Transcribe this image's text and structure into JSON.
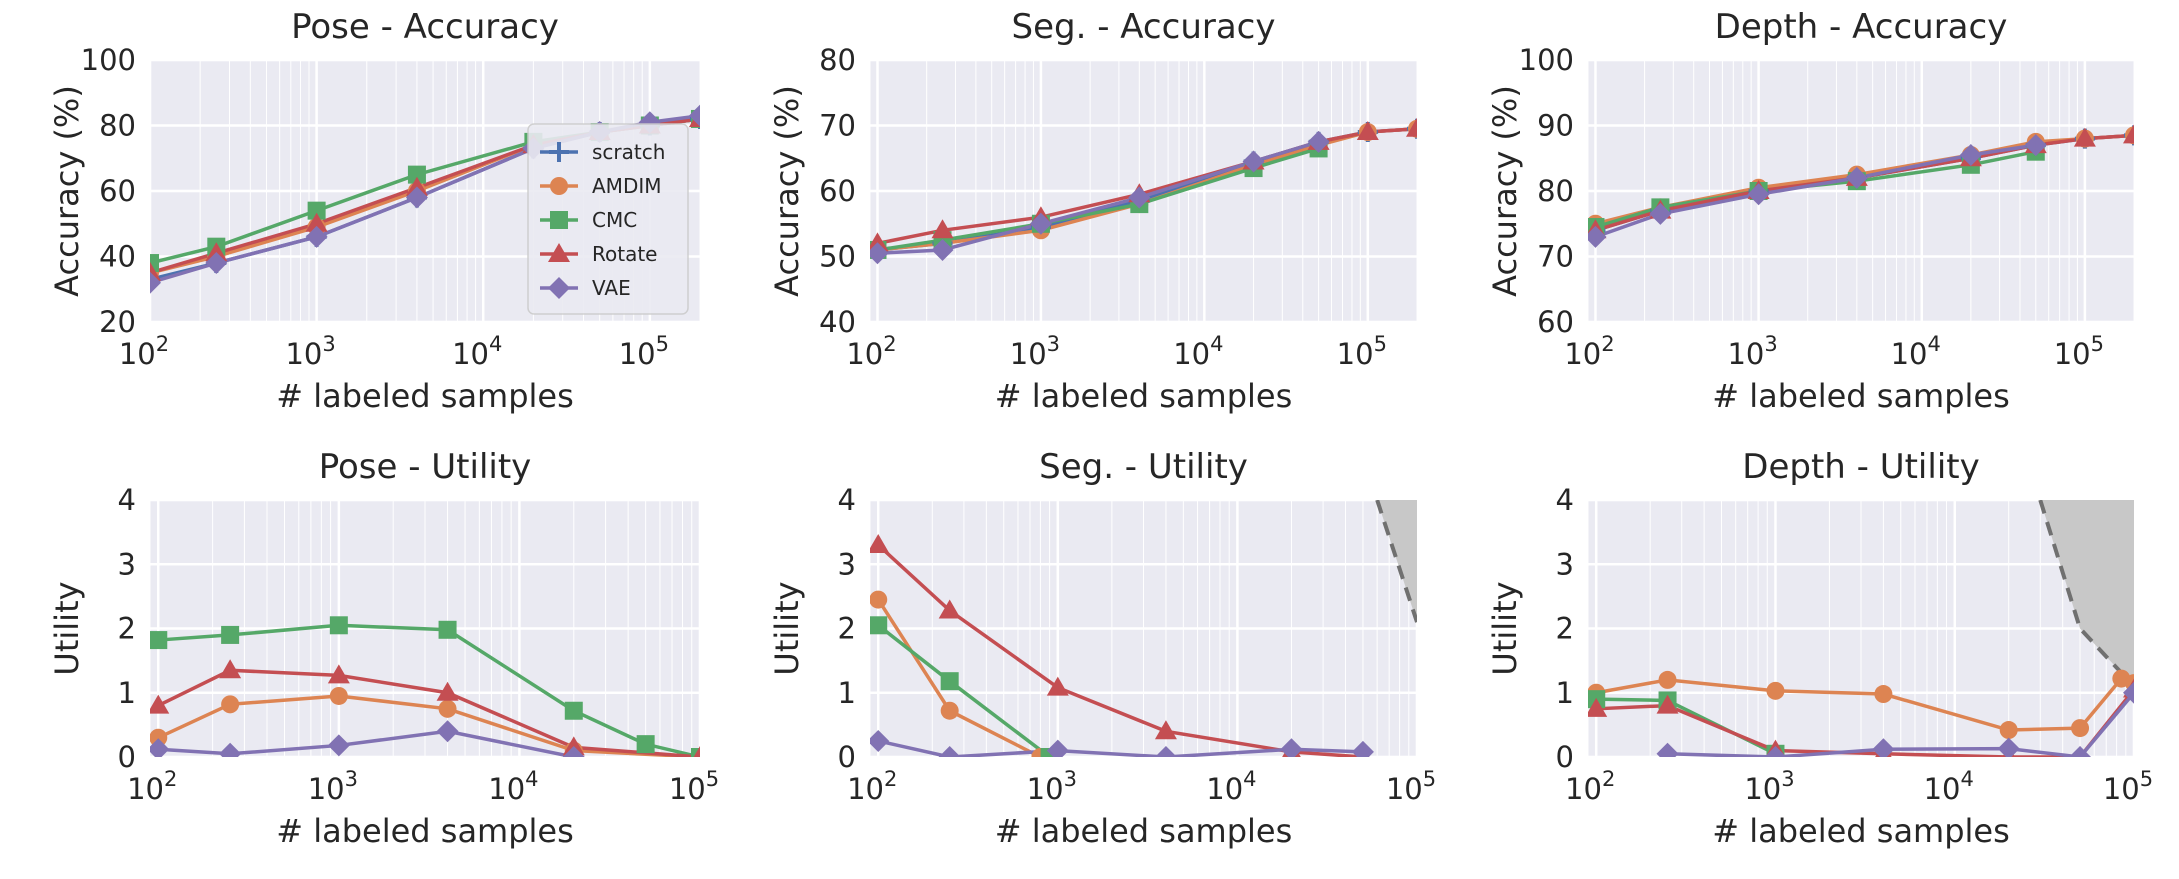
{
  "colors": {
    "background": "#EAEAF2",
    "grid": "#FFFFFF",
    "scratch": "#4C72B0",
    "AMDIM": "#DD8452",
    "CMC": "#55A868",
    "Rotate": "#C44E52",
    "VAE": "#8172B3",
    "shade": "#C8C8C8",
    "dash": "#707070"
  },
  "legend": {
    "placement": "inside top-left panel, right side",
    "labels": [
      "scratch",
      "AMDIM",
      "CMC",
      "Rotate",
      "VAE"
    ]
  },
  "chart_data": [
    {
      "id": "pose-acc",
      "type": "line",
      "title": "Pose - Accuracy",
      "xlabel": "# labeled samples",
      "ylabel": "Accuracy (%)",
      "xscale": "log",
      "xlim": [
        100,
        200000
      ],
      "ylim": [
        20,
        100
      ],
      "yticks": [
        20,
        40,
        60,
        80,
        100
      ],
      "xticks": [
        {
          "exp": 2
        },
        {
          "exp": 3
        },
        {
          "exp": 4
        },
        {
          "exp": 5
        }
      ],
      "grid": true,
      "legend": true,
      "series": [
        {
          "name": "scratch",
          "marker": "plus",
          "x": [
            100,
            250,
            1000,
            4000,
            20000,
            50000,
            100000,
            200000
          ],
          "y": [
            33,
            38,
            46,
            58,
            73,
            78,
            80,
            82
          ]
        },
        {
          "name": "AMDIM",
          "marker": "circle",
          "x": [
            100,
            250,
            1000,
            4000,
            20000,
            50000,
            100000,
            200000
          ],
          "y": [
            35,
            40,
            49,
            60,
            74,
            78,
            80,
            82
          ]
        },
        {
          "name": "CMC",
          "marker": "square",
          "x": [
            100,
            250,
            1000,
            4000,
            20000,
            50000,
            100000,
            200000
          ],
          "y": [
            38,
            43,
            54,
            65,
            75,
            78,
            80,
            82
          ]
        },
        {
          "name": "Rotate",
          "marker": "triangle",
          "x": [
            100,
            250,
            1000,
            4000,
            20000,
            50000,
            100000,
            200000
          ],
          "y": [
            35,
            41,
            50,
            61,
            74,
            78,
            80,
            82
          ]
        },
        {
          "name": "VAE",
          "marker": "diamond",
          "x": [
            100,
            250,
            1000,
            4000,
            20000,
            50000,
            100000,
            200000
          ],
          "y": [
            32,
            38,
            46,
            58,
            73,
            78,
            81,
            83
          ]
        }
      ]
    },
    {
      "id": "seg-acc",
      "type": "line",
      "title": "Seg. - Accuracy",
      "xlabel": "# labeled samples",
      "ylabel": "Accuracy (%)",
      "xscale": "log",
      "xlim": [
        90,
        200000
      ],
      "ylim": [
        40,
        80
      ],
      "yticks": [
        40,
        50,
        60,
        70,
        80
      ],
      "xticks": [
        {
          "exp": 2
        },
        {
          "exp": 3
        },
        {
          "exp": 4
        },
        {
          "exp": 5
        }
      ],
      "grid": true,
      "series": [
        {
          "name": "scratch",
          "marker": "plus",
          "x": [
            100,
            250,
            1000,
            4000,
            20000,
            50000,
            100000,
            200000
          ],
          "y": [
            51,
            52,
            54.5,
            58.5,
            64.5,
            67.5,
            69,
            69.5
          ]
        },
        {
          "name": "AMDIM",
          "marker": "circle",
          "x": [
            100,
            250,
            1000,
            4000,
            20000,
            50000,
            100000,
            200000
          ],
          "y": [
            51,
            52,
            54,
            58,
            64,
            67,
            69,
            69.5
          ]
        },
        {
          "name": "CMC",
          "marker": "square",
          "x": [
            100,
            250,
            1000,
            4000,
            20000,
            50000
          ],
          "y": [
            51,
            52.5,
            55,
            58,
            63.5,
            66.5
          ]
        },
        {
          "name": "Rotate",
          "marker": "triangle",
          "x": [
            100,
            250,
            1000,
            4000,
            20000,
            50000,
            100000,
            200000
          ],
          "y": [
            52,
            54,
            56,
            59.5,
            64.5,
            67.5,
            69,
            69.5
          ]
        },
        {
          "name": "VAE",
          "marker": "diamond",
          "x": [
            100,
            250,
            1000,
            4000,
            20000,
            50000
          ],
          "y": [
            50.5,
            51,
            55,
            59,
            64.5,
            67.5
          ]
        }
      ]
    },
    {
      "id": "depth-acc",
      "type": "line",
      "title": "Depth - Accuracy",
      "xlabel": "# labeled samples",
      "ylabel": "Accuracy (%)",
      "xscale": "log",
      "xlim": [
        90,
        200000
      ],
      "ylim": [
        60,
        100
      ],
      "yticks": [
        60,
        70,
        80,
        90,
        100
      ],
      "xticks": [
        {
          "exp": 2
        },
        {
          "exp": 3
        },
        {
          "exp": 4
        },
        {
          "exp": 5
        }
      ],
      "grid": true,
      "series": [
        {
          "name": "scratch",
          "marker": "plus",
          "x": [
            100,
            250,
            1000,
            4000,
            20000,
            50000,
            100000,
            200000
          ],
          "y": [
            74,
            77,
            80,
            82,
            85,
            87,
            88,
            88.5
          ]
        },
        {
          "name": "AMDIM",
          "marker": "circle",
          "x": [
            100,
            250,
            1000,
            4000,
            20000,
            50000,
            100000,
            200000
          ],
          "y": [
            75,
            77.5,
            80.5,
            82.5,
            85.5,
            87.5,
            88,
            88.5
          ]
        },
        {
          "name": "CMC",
          "marker": "square",
          "x": [
            100,
            250,
            1000,
            4000,
            20000,
            50000
          ],
          "y": [
            74.5,
            77.5,
            80,
            81.5,
            84,
            86
          ]
        },
        {
          "name": "Rotate",
          "marker": "triangle",
          "x": [
            100,
            250,
            1000,
            4000,
            20000,
            50000,
            100000,
            200000
          ],
          "y": [
            74,
            77,
            80,
            82,
            85,
            87,
            88,
            88.5
          ]
        },
        {
          "name": "VAE",
          "marker": "diamond",
          "x": [
            100,
            250,
            1000,
            4000,
            20000,
            50000
          ],
          "y": [
            73,
            76.5,
            79.5,
            82,
            85.5,
            87
          ]
        }
      ]
    },
    {
      "id": "pose-util",
      "type": "line",
      "title": "Pose - Utility",
      "xlabel": "# labeled samples",
      "ylabel": "Utility",
      "xscale": "log",
      "xlim": [
        90,
        100000
      ],
      "ylim": [
        0,
        4
      ],
      "yticks": [
        0,
        1,
        2,
        3,
        4
      ],
      "xticks": [
        {
          "exp": 2
        },
        {
          "exp": 3
        },
        {
          "exp": 4
        },
        {
          "exp": 5
        }
      ],
      "grid": true,
      "series": [
        {
          "name": "AMDIM",
          "marker": "circle",
          "x": [
            100,
            250,
            1000,
            4000,
            20000,
            100000
          ],
          "y": [
            0.3,
            0.82,
            0.95,
            0.75,
            0.1,
            0.0
          ]
        },
        {
          "name": "CMC",
          "marker": "square",
          "x": [
            100,
            250,
            1000,
            4000,
            20000,
            50000,
            100000
          ],
          "y": [
            1.82,
            1.9,
            2.05,
            1.98,
            0.72,
            0.2,
            0.0
          ]
        },
        {
          "name": "Rotate",
          "marker": "triangle",
          "x": [
            100,
            250,
            1000,
            4000,
            20000,
            100000
          ],
          "y": [
            0.8,
            1.35,
            1.27,
            1.0,
            0.15,
            0.0
          ]
        },
        {
          "name": "VAE",
          "marker": "diamond",
          "x": [
            100,
            250,
            1000,
            4000,
            20000
          ],
          "y": [
            0.12,
            0.05,
            0.18,
            0.4,
            0.0
          ]
        }
      ]
    },
    {
      "id": "seg-util",
      "type": "line",
      "title": "Seg. - Utility",
      "xlabel": "# labeled samples",
      "ylabel": "Utility",
      "xscale": "log",
      "xlim": [
        90,
        100000
      ],
      "ylim": [
        0,
        4
      ],
      "yticks": [
        0,
        1,
        2,
        3,
        4
      ],
      "xticks": [
        {
          "exp": 2
        },
        {
          "exp": 3
        },
        {
          "exp": 4
        },
        {
          "exp": 5
        }
      ],
      "grid": true,
      "shade": {
        "x": [
          60000,
          100000,
          100000
        ],
        "y": [
          4,
          4,
          2.1
        ],
        "boundary_x": [
          60000,
          100000
        ],
        "boundary_y": [
          4,
          2.1
        ]
      },
      "series": [
        {
          "name": "AMDIM",
          "marker": "circle",
          "x": [
            100,
            250,
            800
          ],
          "y": [
            2.45,
            0.72,
            0.0
          ]
        },
        {
          "name": "CMC",
          "marker": "square",
          "x": [
            100,
            250,
            900
          ],
          "y": [
            2.05,
            1.18,
            0.0
          ]
        },
        {
          "name": "Rotate",
          "marker": "triangle",
          "x": [
            100,
            250,
            1000,
            4000,
            20000,
            50000
          ],
          "y": [
            3.3,
            2.28,
            1.08,
            0.4,
            0.08,
            0.0
          ]
        },
        {
          "name": "VAE",
          "marker": "diamond",
          "x": [
            100,
            250,
            1000,
            4000,
            20000,
            50000
          ],
          "y": [
            0.25,
            0.0,
            0.1,
            0.0,
            0.12,
            0.08
          ]
        }
      ]
    },
    {
      "id": "depth-util",
      "type": "line",
      "title": "Depth - Utility",
      "xlabel": "# labeled samples",
      "ylabel": "Utility",
      "xscale": "log",
      "xlim": [
        90,
        100000
      ],
      "ylim": [
        0,
        4
      ],
      "yticks": [
        0,
        1,
        2,
        3,
        4
      ],
      "xticks": [
        {
          "exp": 2
        },
        {
          "exp": 3
        },
        {
          "exp": 4
        },
        {
          "exp": 5
        }
      ],
      "grid": true,
      "shade": {
        "x": [
          30000,
          100000,
          100000,
          50000
        ],
        "y": [
          4,
          4,
          1.1,
          2.0
        ],
        "boundary_x": [
          30000,
          50000,
          100000
        ],
        "boundary_y": [
          4,
          2.0,
          1.1
        ]
      },
      "series": [
        {
          "name": "AMDIM",
          "marker": "circle",
          "x": [
            100,
            250,
            1000,
            4000,
            20000,
            50000,
            85000,
            100000
          ],
          "y": [
            1.0,
            1.2,
            1.03,
            0.98,
            0.42,
            0.45,
            1.22,
            1.15
          ]
        },
        {
          "name": "CMC",
          "marker": "square",
          "x": [
            100,
            250,
            1000
          ],
          "y": [
            0.9,
            0.88,
            0.05
          ]
        },
        {
          "name": "Rotate",
          "marker": "triangle",
          "x": [
            100,
            250,
            1000,
            4000,
            20000,
            50000,
            100000
          ],
          "y": [
            0.75,
            0.8,
            0.1,
            0.05,
            0.0,
            0.0,
            1.05
          ]
        },
        {
          "name": "VAE",
          "marker": "diamond",
          "x": [
            250,
            1000,
            4000,
            20000,
            50000,
            100000
          ],
          "y": [
            0.05,
            0.0,
            0.12,
            0.13,
            0.0,
            1.0
          ]
        }
      ]
    }
  ]
}
